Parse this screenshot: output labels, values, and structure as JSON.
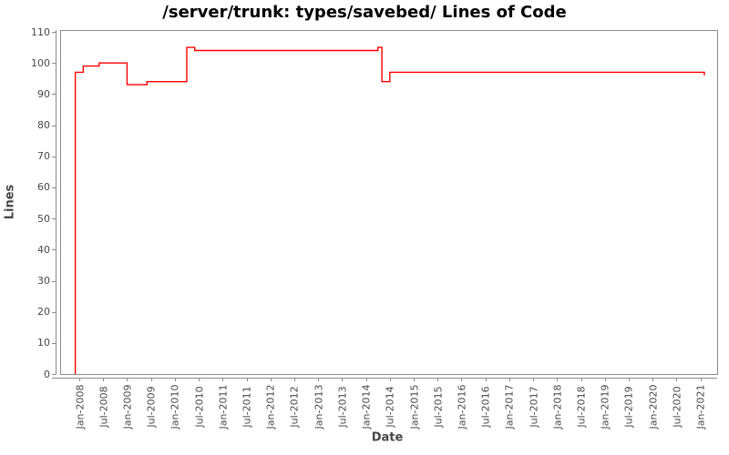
{
  "title": "/server/trunk: types/savebed/ Lines of Code",
  "colors": {
    "line": "#ff0000",
    "frame": "#8c8c8c",
    "tick_text": "#4a4a4a",
    "axis_title_text": "#464646",
    "background": "#ffffff"
  },
  "chart_data": {
    "type": "line",
    "step": "after",
    "title": "/server/trunk: types/savebed/ Lines of Code",
    "xlabel": "Date",
    "ylabel": "Lines",
    "ylim": [
      0,
      110
    ],
    "grid": false,
    "legend": "none",
    "y_ticks": [
      0,
      10,
      20,
      30,
      40,
      50,
      60,
      70,
      80,
      90,
      100,
      110
    ],
    "x_ticks": [
      "Jan-2008",
      "Jul-2008",
      "Jan-2009",
      "Jul-2009",
      "Jan-2010",
      "Jul-2010",
      "Jan-2011",
      "Jul-2011",
      "Jan-2012",
      "Jul-2012",
      "Jan-2013",
      "Jul-2013",
      "Jan-2014",
      "Jul-2014",
      "Jan-2015",
      "Jul-2015",
      "Jan-2016",
      "Jul-2016",
      "Jan-2017",
      "Jul-2017",
      "Jan-2018",
      "Jul-2018",
      "Jan-2019",
      "Jul-2019",
      "Jan-2020",
      "Jul-2020",
      "Jan-2021"
    ],
    "series": [
      {
        "name": "Lines of Code",
        "color": "#ff0000",
        "starts_from_zero": true,
        "points": [
          {
            "date": "2007-12",
            "value": 97
          },
          {
            "date": "2008-02",
            "value": 99
          },
          {
            "date": "2008-06",
            "value": 100
          },
          {
            "date": "2009-01",
            "value": 93
          },
          {
            "date": "2009-06",
            "value": 94
          },
          {
            "date": "2010-04",
            "value": 105
          },
          {
            "date": "2010-06",
            "value": 104
          },
          {
            "date": "2014-04",
            "value": 105
          },
          {
            "date": "2014-05",
            "value": 94
          },
          {
            "date": "2014-07",
            "value": 97
          },
          {
            "date": "2021-02",
            "value": 96
          }
        ]
      }
    ]
  }
}
